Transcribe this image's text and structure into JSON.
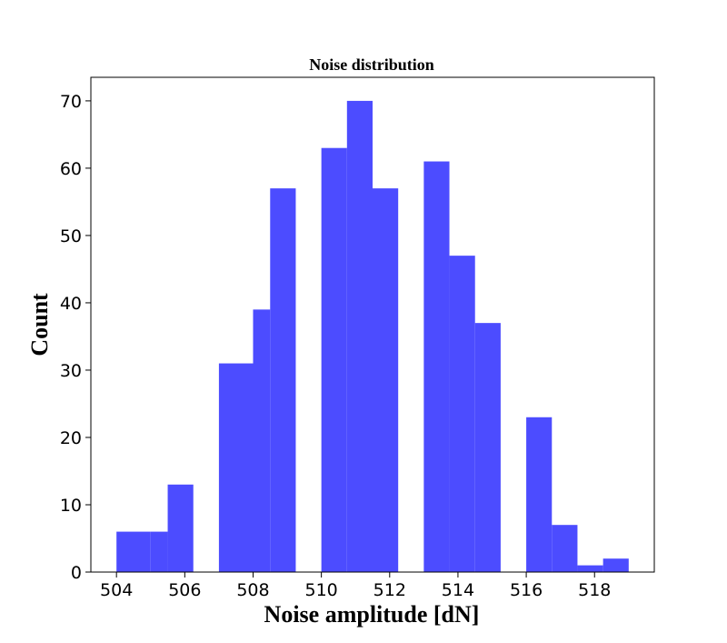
{
  "chart_data": {
    "type": "bar",
    "title": "Noise distribution",
    "xlabel": "Noise amplitude [dN]",
    "ylabel": "Count",
    "xlim": [
      503.25,
      519.75
    ],
    "ylim": [
      0,
      73.5
    ],
    "xticks": [
      504,
      506,
      508,
      510,
      512,
      514,
      516,
      518
    ],
    "yticks": [
      0,
      10,
      20,
      30,
      40,
      50,
      60,
      70
    ],
    "bar_color": "#4c4cff",
    "bins": [
      {
        "start": 504.0,
        "end": 505.0,
        "count": 6
      },
      {
        "start": 505.0,
        "end": 505.5,
        "count": 6
      },
      {
        "start": 505.5,
        "end": 506.25,
        "count": 13
      },
      {
        "start": 507.0,
        "end": 508.0,
        "count": 31
      },
      {
        "start": 508.0,
        "end": 508.5,
        "count": 39
      },
      {
        "start": 508.5,
        "end": 509.25,
        "count": 57
      },
      {
        "start": 510.0,
        "end": 510.75,
        "count": 63
      },
      {
        "start": 510.75,
        "end": 511.5,
        "count": 70
      },
      {
        "start": 511.5,
        "end": 512.25,
        "count": 57
      },
      {
        "start": 513.0,
        "end": 513.75,
        "count": 61
      },
      {
        "start": 513.75,
        "end": 514.5,
        "count": 47
      },
      {
        "start": 514.5,
        "end": 515.25,
        "count": 37
      },
      {
        "start": 516.0,
        "end": 516.75,
        "count": 23
      },
      {
        "start": 516.75,
        "end": 517.5,
        "count": 7
      },
      {
        "start": 517.5,
        "end": 518.25,
        "count": 1
      },
      {
        "start": 518.25,
        "end": 519.0,
        "count": 2
      }
    ]
  }
}
